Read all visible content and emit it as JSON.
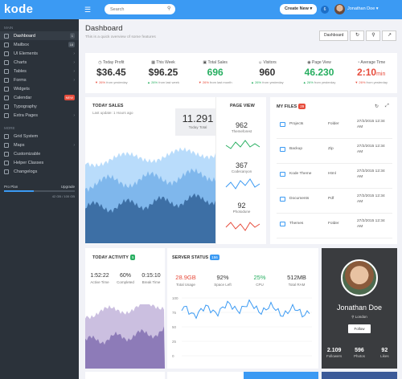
{
  "app": {
    "logo": "kode"
  },
  "sidebar": {
    "main_label": "MAIN",
    "main_items": [
      {
        "label": "Dashboard",
        "badge": "1",
        "active": true
      },
      {
        "label": "Mailbox",
        "badge": "18"
      },
      {
        "label": "UI Elements",
        "caret": "›"
      },
      {
        "label": "Charts",
        "caret": "›"
      },
      {
        "label": "Tables",
        "caret": "›"
      },
      {
        "label": "Forms",
        "caret": "›"
      },
      {
        "label": "Widgets"
      },
      {
        "label": "Calendar",
        "badge": "NEW",
        "badge_red": true
      },
      {
        "label": "Typography"
      },
      {
        "label": "Extra Pages",
        "caret": "›"
      }
    ],
    "more_label": "MORE",
    "more_items": [
      {
        "label": "Grid System"
      },
      {
        "label": "Maps",
        "caret": "›"
      },
      {
        "label": "Customizable"
      },
      {
        "label": "Helper Classes"
      },
      {
        "label": "Changelogs"
      }
    ],
    "plan": {
      "name": "Pro Plan",
      "upgrade": "Upgrade",
      "usage_text": "42 GB / 100 GB",
      "usage_fraction": 0.42
    }
  },
  "topbar": {
    "search_placeholder": "Search",
    "create_label": "Create New ▾",
    "notif_count": "6",
    "user_name": "Jonathan Doe ▾"
  },
  "header": {
    "title": "Dashboard",
    "subtitle": "This is a quick overview of some features",
    "button_label": "Dashboard",
    "refresh_icon": "↻",
    "search_icon": "⚲",
    "chart_icon": "↗"
  },
  "stats": [
    {
      "icon": "◷",
      "label": "Today Profit",
      "value": "$36.45",
      "color": "default",
      "change": "▼ 26%",
      "change_dir": "down",
      "suffix": " from yesterday"
    },
    {
      "icon": "▦",
      "label": "This Week",
      "value": "$96.25",
      "color": "default",
      "change": "▲ 26%",
      "change_dir": "up",
      "suffix": " from last week"
    },
    {
      "icon": "▣",
      "label": "Total Sales",
      "value": "696",
      "color": "green",
      "change": "▼ 26%",
      "change_dir": "down",
      "suffix": " from last month"
    },
    {
      "icon": "☺",
      "label": "Visitors",
      "value": "960",
      "color": "default",
      "change": "▲ 26%",
      "change_dir": "up",
      "suffix": " from yesterday"
    },
    {
      "icon": "◉",
      "label": "Page View",
      "value": "46.230",
      "color": "green",
      "change": "▲ 26%",
      "change_dir": "up",
      "suffix": " from yesterday"
    },
    {
      "icon": "◔",
      "label": "Average Time",
      "value": "2:10",
      "unit": "min",
      "color": "red",
      "change": "▼ 26%",
      "change_dir": "down",
      "suffix": " from yesterday"
    }
  ],
  "today_sales": {
    "title": "TODAY SALES",
    "subtitle": "Last update: 1 Hours ago",
    "total_value": "11.291",
    "total_label": "Today Total"
  },
  "page_view": {
    "title": "PAGE VIEW",
    "items": [
      {
        "value": "962",
        "label": "Themeforest"
      },
      {
        "value": "367",
        "label": "Codecanyon"
      },
      {
        "value": "92",
        "label": "Photodune"
      }
    ]
  },
  "files": {
    "title": "MY FILES",
    "count": "29",
    "refresh_icon": "↻",
    "expand_icon": "⤢",
    "rows": [
      {
        "name": "Projects",
        "type": "Folder",
        "date": "27/2/2015 12:34 AM"
      },
      {
        "name": "Backup",
        "type": "Zip",
        "date": "27/2/2015 12:34 AM"
      },
      {
        "name": "Kode Theme",
        "type": "Html",
        "date": "27/2/2015 12:34 AM"
      },
      {
        "name": "Documents",
        "type": "Pdf",
        "date": "27/2/2015 12:34 AM"
      },
      {
        "name": "Themes",
        "type": "Folder",
        "date": "27/2/2015 12:34 AM"
      }
    ]
  },
  "activity": {
    "title": "TODAY ACTIVITY",
    "count": "5",
    "items": [
      {
        "value": "1:52:22",
        "label": "Active Time"
      },
      {
        "value": "60%",
        "label": "Completed"
      },
      {
        "value": "0:15:10",
        "label": "Break Time"
      }
    ]
  },
  "server": {
    "title": "SERVER STATUS",
    "badge": "156",
    "items": [
      {
        "value": "28.9GB",
        "label": "Total Usage",
        "color": "red"
      },
      {
        "value": "92%",
        "label": "Space Left",
        "color": "default"
      },
      {
        "value": "25%",
        "label": "CPU",
        "color": "green"
      },
      {
        "value": "512MB",
        "label": "Total RAM",
        "color": "default"
      }
    ],
    "chart_ticks": [
      "100",
      "75",
      "50",
      "25",
      "0"
    ]
  },
  "profile": {
    "name": "Jonathan Doe",
    "location": "London",
    "follow_label": "Follow",
    "stats": [
      {
        "value": "2.109",
        "label": "Followers"
      },
      {
        "value": "596",
        "label": "Photos"
      },
      {
        "value": "92",
        "label": "Likes"
      }
    ]
  },
  "colors": {
    "accent": "#3b9af3",
    "sidebar": "#2b323a",
    "green": "#27ae60",
    "red": "#e74c3c"
  }
}
